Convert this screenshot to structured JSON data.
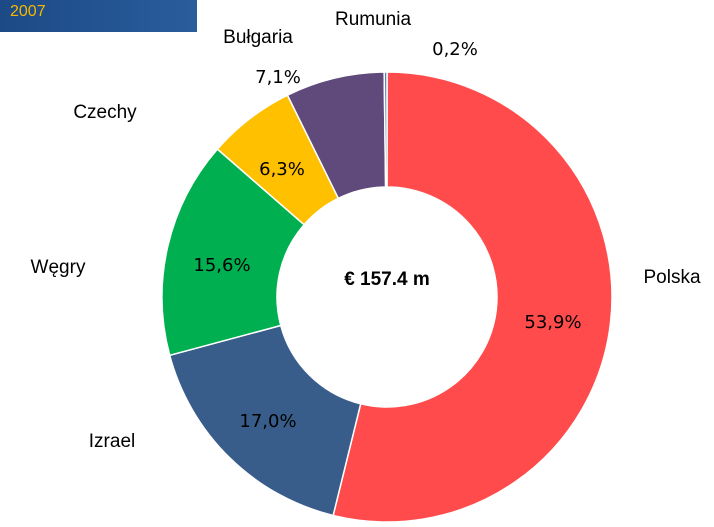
{
  "chart_data": {
    "type": "donut",
    "title": "2007",
    "annotation": "€ 157.4 m",
    "categories": [
      "Polska",
      "Izrael",
      "Węgry",
      "Czechy",
      "Bułgaria",
      "Rumunia"
    ],
    "values": [
      53.9,
      17.0,
      15.6,
      6.3,
      7.1,
      0.2
    ],
    "value_labels": [
      "53,9%",
      "17,0%",
      "15,6%",
      "6,3%",
      "7,1%",
      "0,2%"
    ],
    "colors": [
      "#ff4b4b",
      "#385d8a",
      "#00b050",
      "#ffc000",
      "#604a7b",
      "#4f81bd"
    ]
  }
}
